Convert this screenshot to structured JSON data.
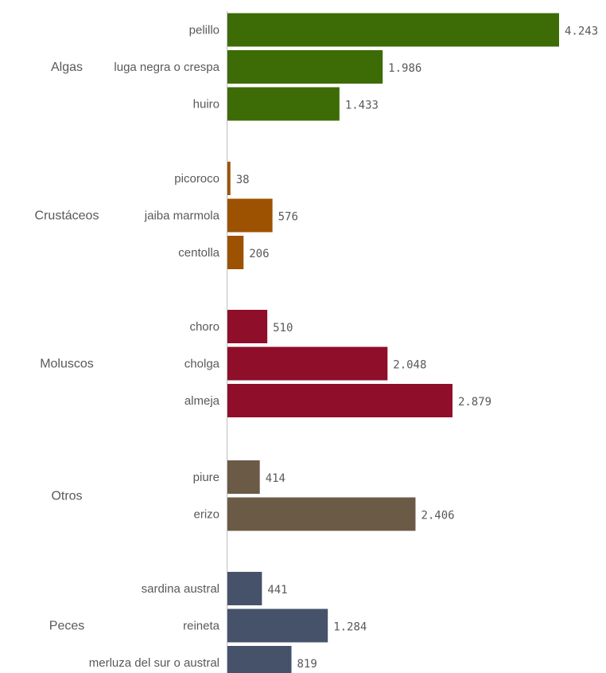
{
  "chart_data": {
    "type": "bar",
    "orientation": "horizontal",
    "grouped_by": "category",
    "xlim": [
      0,
      4243
    ],
    "grid": false,
    "legend": "none",
    "groups": [
      {
        "name": "Algas",
        "color": "#3d6b05",
        "items": [
          {
            "label": "pelillo",
            "value": 4243,
            "display": "4.243"
          },
          {
            "label": "luga negra o crespa",
            "value": 1986,
            "display": "1.986"
          },
          {
            "label": "huiro",
            "value": 1433,
            "display": "1.433"
          }
        ]
      },
      {
        "name": "Crustáceos",
        "color": "#9c5200",
        "items": [
          {
            "label": "picoroco",
            "value": 38,
            "display": "38"
          },
          {
            "label": "jaiba marmola",
            "value": 576,
            "display": "576"
          },
          {
            "label": "centolla",
            "value": 206,
            "display": "206"
          }
        ]
      },
      {
        "name": "Moluscos",
        "color": "#8f0e2a",
        "items": [
          {
            "label": "choro",
            "value": 510,
            "display": "510"
          },
          {
            "label": "cholga",
            "value": 2048,
            "display": "2.048"
          },
          {
            "label": "almeja",
            "value": 2879,
            "display": "2.879"
          }
        ]
      },
      {
        "name": "Otros",
        "color": "#6b5a46",
        "items": [
          {
            "label": "piure",
            "value": 414,
            "display": "414"
          },
          {
            "label": "erizo",
            "value": 2406,
            "display": "2.406"
          }
        ]
      },
      {
        "name": "Peces",
        "color": "#45526a",
        "items": [
          {
            "label": "sardina austral",
            "value": 441,
            "display": "441"
          },
          {
            "label": "reineta",
            "value": 1284,
            "display": "1.284"
          },
          {
            "label": "merluza del sur o austral",
            "value": 819,
            "display": "819"
          }
        ]
      }
    ]
  }
}
